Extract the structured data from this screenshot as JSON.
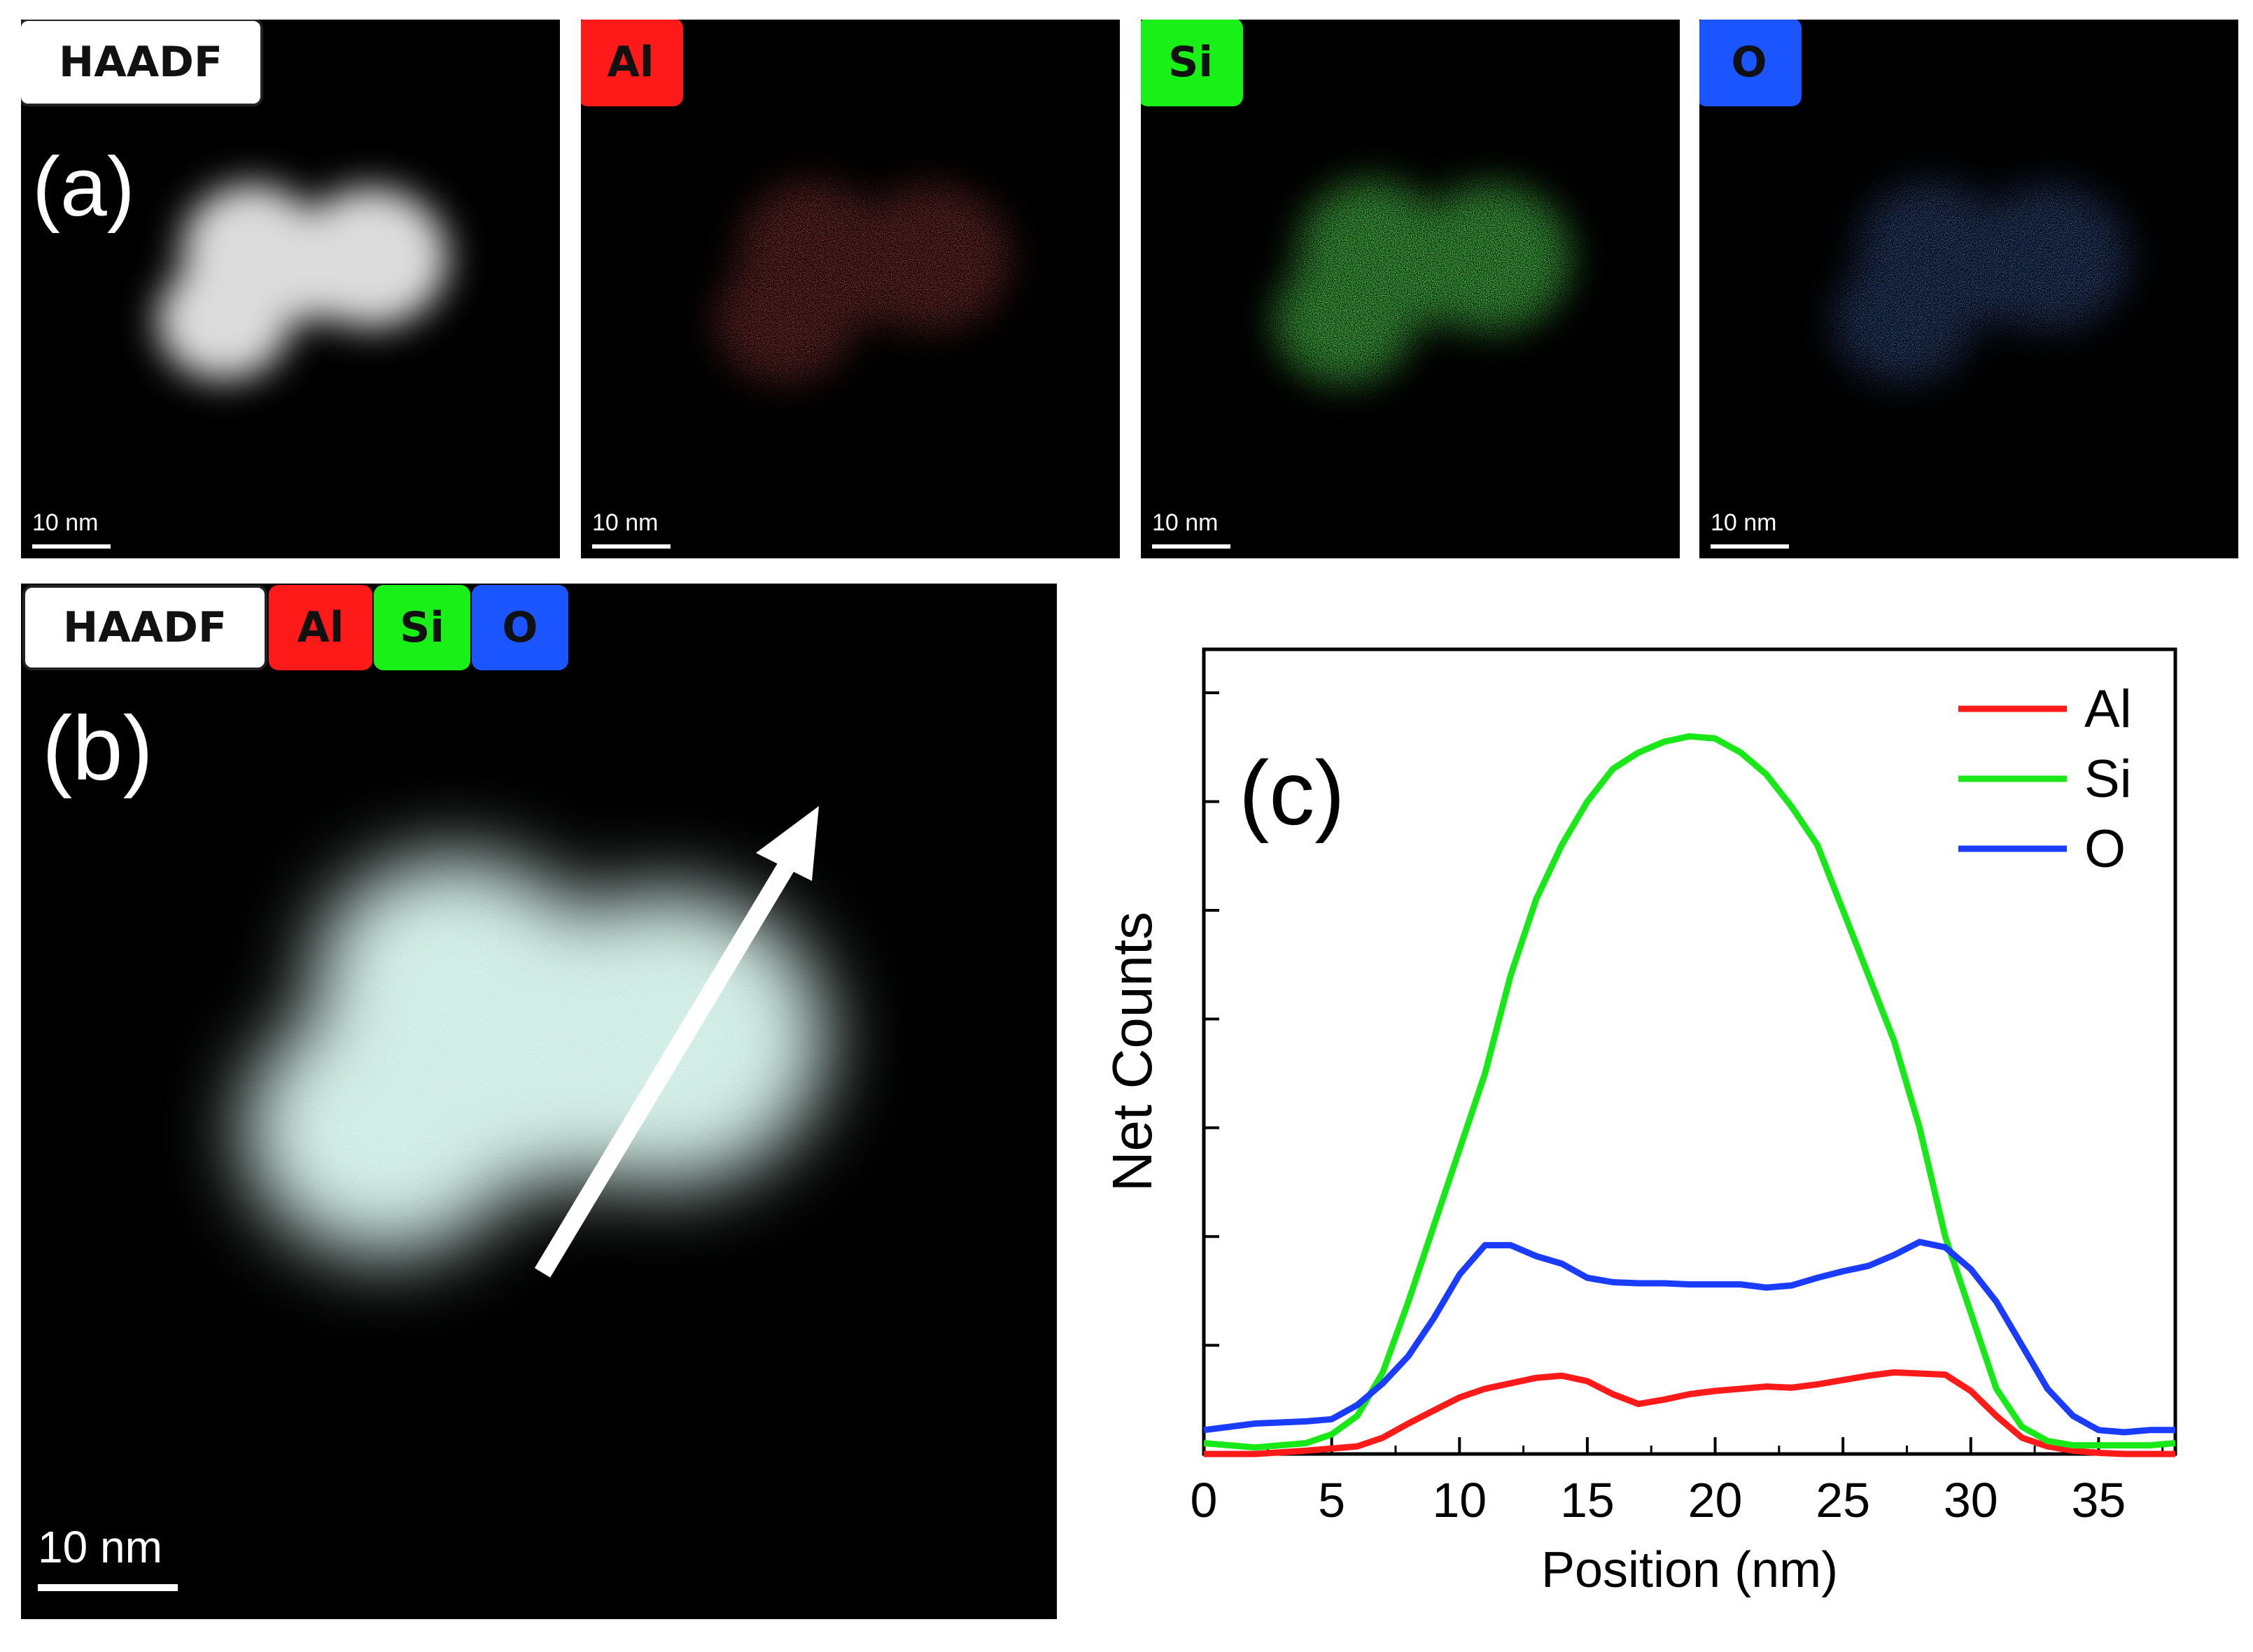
{
  "panel_a": {
    "label": "(a)",
    "maps": [
      {
        "tag": "HAADF",
        "scale": "10 nm",
        "color": "#ffffff",
        "tag_bg": "#ffffff",
        "tag_fg": "#111111"
      },
      {
        "tag": "Al",
        "scale": "10 nm",
        "color": "#ff1a1a",
        "tag_bg": "#ff1a1a",
        "tag_fg": "#111111"
      },
      {
        "tag": "Si",
        "scale": "10 nm",
        "color": "#1aff1a",
        "tag_bg": "#18f018",
        "tag_fg": "#111111"
      },
      {
        "tag": "O",
        "scale": "10 nm",
        "color": "#1a4dff",
        "tag_bg": "#1a55ff",
        "tag_fg": "#111111"
      }
    ]
  },
  "panel_b": {
    "label": "(b)",
    "tags": [
      "HAADF",
      "Al",
      "Si",
      "O"
    ],
    "scale": "10 nm"
  },
  "chart_data": {
    "type": "line",
    "panel_label": "(c)",
    "xlabel": "Position (nm)",
    "ylabel": "Net Counts",
    "xlim": [
      0,
      38
    ],
    "ylim": [
      0,
      7.4
    ],
    "xticks": [
      0,
      5,
      10,
      15,
      20,
      25,
      30,
      35
    ],
    "yticks_count": 7,
    "y_tick_labels_shown": false,
    "legend_position": "top-right",
    "series": [
      {
        "name": "Al",
        "color": "#ff1a1a",
        "x": [
          0,
          2,
          4,
          5,
          6,
          7,
          8,
          9,
          10,
          11,
          12,
          13,
          14,
          15,
          16,
          17,
          18,
          19,
          20,
          21,
          22,
          23,
          24,
          25,
          26,
          27,
          28,
          29,
          30,
          31,
          32,
          33,
          34,
          35,
          36,
          37,
          38
        ],
        "y": [
          0.0,
          0.0,
          0.03,
          0.05,
          0.07,
          0.15,
          0.28,
          0.4,
          0.52,
          0.6,
          0.65,
          0.7,
          0.72,
          0.67,
          0.55,
          0.46,
          0.5,
          0.55,
          0.58,
          0.6,
          0.62,
          0.61,
          0.64,
          0.68,
          0.72,
          0.75,
          0.74,
          0.73,
          0.58,
          0.35,
          0.15,
          0.07,
          0.03,
          0.01,
          0.0,
          0.0,
          0.0
        ]
      },
      {
        "name": "Si",
        "color": "#18e818",
        "x": [
          0,
          2,
          4,
          5,
          6,
          7,
          8,
          9,
          10,
          11,
          12,
          13,
          14,
          15,
          16,
          17,
          18,
          19,
          20,
          21,
          22,
          23,
          24,
          25,
          26,
          27,
          28,
          29,
          30,
          31,
          32,
          33,
          34,
          35,
          36,
          37,
          38
        ],
        "y": [
          0.1,
          0.06,
          0.1,
          0.18,
          0.35,
          0.75,
          1.4,
          2.1,
          2.8,
          3.5,
          4.4,
          5.1,
          5.6,
          6.0,
          6.3,
          6.45,
          6.55,
          6.6,
          6.58,
          6.45,
          6.25,
          5.95,
          5.6,
          5.0,
          4.4,
          3.8,
          3.0,
          2.0,
          1.3,
          0.6,
          0.25,
          0.12,
          0.08,
          0.08,
          0.08,
          0.08,
          0.1
        ]
      },
      {
        "name": "O",
        "color": "#1a3cff",
        "x": [
          0,
          2,
          4,
          5,
          6,
          7,
          8,
          9,
          10,
          11,
          12,
          13,
          14,
          15,
          16,
          17,
          18,
          19,
          20,
          21,
          22,
          23,
          24,
          25,
          26,
          27,
          28,
          29,
          30,
          31,
          32,
          33,
          34,
          35,
          36,
          37,
          38
        ],
        "y": [
          0.22,
          0.28,
          0.3,
          0.32,
          0.45,
          0.65,
          0.9,
          1.25,
          1.65,
          1.92,
          1.92,
          1.82,
          1.75,
          1.62,
          1.58,
          1.57,
          1.57,
          1.56,
          1.56,
          1.56,
          1.53,
          1.55,
          1.62,
          1.68,
          1.73,
          1.83,
          1.95,
          1.9,
          1.7,
          1.4,
          1.0,
          0.6,
          0.35,
          0.22,
          0.2,
          0.22,
          0.22
        ]
      }
    ]
  }
}
